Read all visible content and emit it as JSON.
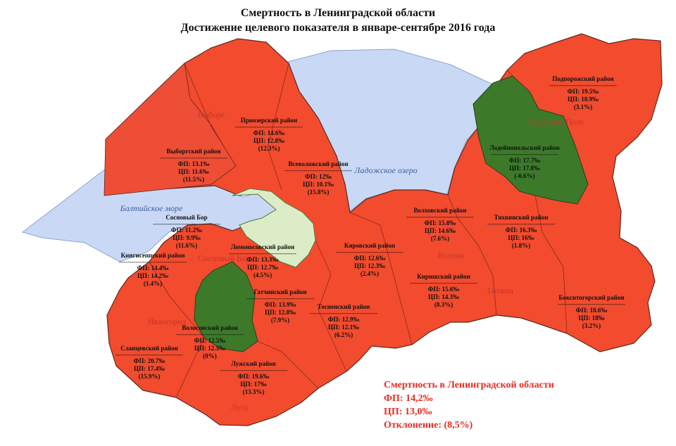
{
  "title": "Смертность в Ленинградской области",
  "subtitle": "Достижение целевого показателя в январе-сентябре 2016 года",
  "colors": {
    "not_achieved": "#f24b2e",
    "achieved": "#3c7a2a",
    "water": "#c9d8f5",
    "city": "#dcecc6",
    "border": "#5b2a1e"
  },
  "dash_line": "--------------------------------",
  "districts": [
    {
      "id": "priozersky",
      "name": "Приозерский район",
      "fp": "ФП: 14.6‰",
      "cp": "ЦП: 12.8‰",
      "dev": "(12.3%)",
      "status": "not_achieved"
    },
    {
      "id": "vyborgsky",
      "name": "Выборгский район",
      "fp": "ФП: 13.1‰",
      "cp": "ЦП: 11.6‰",
      "dev": "(11.5%)",
      "status": "not_achieved"
    },
    {
      "id": "vsevolozhsky",
      "name": "Всеволожский район",
      "fp": "ФП: 12‰",
      "cp": "ЦП: 10.1‰",
      "dev": "(15.8%)",
      "status": "not_achieved"
    },
    {
      "id": "podporozhsky",
      "name": "Подпорожский район",
      "fp": "ФП: 19.5‰",
      "cp": "ЦП: 18.9‰",
      "dev": "(3.1%)",
      "status": "not_achieved"
    },
    {
      "id": "lodeynopolsky",
      "name": "Лодейнопольский район",
      "fp": "ФП: 17.7‰",
      "cp": "ЦП: 17.8‰",
      "dev": "(-0.6%)",
      "status": "achieved"
    },
    {
      "id": "sosnovy-bor",
      "name": "Сосновый Бор",
      "fp": "ФП: 11.2‰",
      "cp": "ЦП: 9.9‰",
      "dev": "(11.6%)",
      "status": "not_achieved"
    },
    {
      "id": "volkhovsky",
      "name": "Волховский район",
      "fp": "ФП: 15.8‰",
      "cp": "ЦП: 14.6‰",
      "dev": "(7.6%)",
      "status": "not_achieved"
    },
    {
      "id": "tikhvinsky",
      "name": "Тихвинский район",
      "fp": "ФП: 16.3‰",
      "cp": "ЦП: 16‰",
      "dev": "(1.8%)",
      "status": "not_achieved"
    },
    {
      "id": "kingiseppsky",
      "name": "Кингисеппский район",
      "fp": "ФП: 14.4‰",
      "cp": "ЦП: 14.2‰",
      "dev": "(1.4%)",
      "status": "not_achieved"
    },
    {
      "id": "lomonosovsky",
      "name": "Ломоносовский район",
      "fp": "ФП: 13.3‰",
      "cp": "ЦП: 12.7‰",
      "dev": "(4.5%)",
      "status": "not_achieved"
    },
    {
      "id": "kirovsky",
      "name": "Кировский район",
      "fp": "ФП: 12.6‰",
      "cp": "ЦП: 12.3‰",
      "dev": "(2.4%)",
      "status": "not_achieved"
    },
    {
      "id": "kirishsky",
      "name": "Киришский район",
      "fp": "ФП: 15.6‰",
      "cp": "ЦП: 14.3‰",
      "dev": "(8.3%)",
      "status": "not_achieved"
    },
    {
      "id": "gatchinsky",
      "name": "Гатчинский район",
      "fp": "ФП: 13.9‰",
      "cp": "ЦП: 12.8‰",
      "dev": "(7.9%)",
      "status": "not_achieved"
    },
    {
      "id": "tosnensky",
      "name": "Тосненский район",
      "fp": "ФП: 12.9‰",
      "cp": "ЦП: 12.1‰",
      "dev": "(6.2%)",
      "status": "not_achieved"
    },
    {
      "id": "boksitogorsky",
      "name": "Бокситогорский район",
      "fp": "ФП: 18.6‰",
      "cp": "ЦП: 18‰",
      "dev": "(3.2%)",
      "status": "not_achieved"
    },
    {
      "id": "volosovsky",
      "name": "Волосовский район",
      "fp": "ФП: 12.5‰",
      "cp": "ЦП: 12.5‰",
      "dev": "(0%)",
      "status": "achieved"
    },
    {
      "id": "slantsevsky",
      "name": "Сланцевский район",
      "fp": "ФП: 20.7‰",
      "cp": "ЦП: 17.4‰",
      "dev": "(15.9%)",
      "status": "not_achieved"
    },
    {
      "id": "luzhsky",
      "name": "Лужский район",
      "fp": "ФП: 19.6‰",
      "cp": "ЦП: 17‰",
      "dev": "(13.3%)",
      "status": "not_achieved"
    }
  ],
  "places": [
    "Выборг",
    "Лодейное Поле",
    "Волхов",
    "Тихвин",
    "Сосновый Бор",
    "Ивангород",
    "Луга"
  ],
  "water_labels": [
    "Ладожское озеро",
    "Балтийское море"
  ],
  "summary": {
    "title": "Смертность в Ленинградской области",
    "fp": "ФП: 14,2‰",
    "cp": "ЦП: 13,0‰",
    "deviation": "Отклонение: (8,5%)"
  }
}
